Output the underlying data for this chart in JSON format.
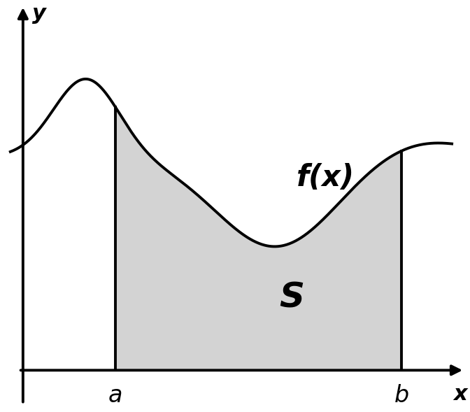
{
  "background_color": "#ffffff",
  "fill_color": "#d3d3d3",
  "curve_color": "#000000",
  "axis_color": "#000000",
  "line_width": 2.8,
  "x_min": -0.5,
  "x_max": 10.5,
  "y_min": -0.7,
  "y_max": 6.5,
  "a": 2.2,
  "b": 9.0,
  "label_a": "a",
  "label_b": "b",
  "label_x": "x",
  "label_y": "y",
  "label_s": "S",
  "label_fx": "f(x)",
  "origin_x": 0.0,
  "origin_y": 0.0,
  "figsize": [
    6.72,
    5.89
  ],
  "dpi": 100,
  "curve_x_start": -0.3,
  "curve_x_end": 10.2
}
